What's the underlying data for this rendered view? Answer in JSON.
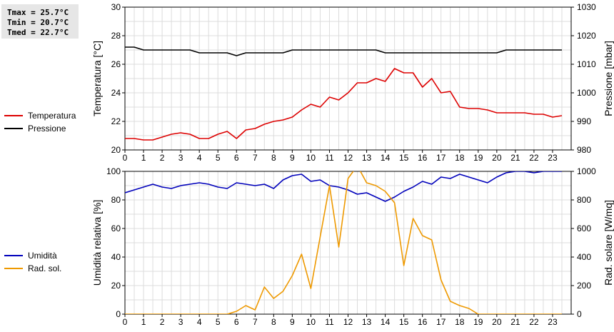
{
  "stats": {
    "tmax": "Tmax = 25.7°C",
    "tmin": "Tmin = 20.7°C",
    "tmed": "Tmed = 22.7°C"
  },
  "chart_data": [
    {
      "type": "line",
      "title": "",
      "xlabel": "",
      "x_ticks": [
        "0",
        "1",
        "2",
        "3",
        "4",
        "5",
        "6",
        "7",
        "8",
        "9",
        "10",
        "11",
        "12",
        "13",
        "14",
        "15",
        "16",
        "17",
        "18",
        "19",
        "20",
        "21",
        "22",
        "23"
      ],
      "xlim": [
        0,
        24
      ],
      "y_left": {
        "label": "Temperatura [°C]",
        "ylim": [
          20,
          30
        ],
        "ticks": [
          "20",
          "22",
          "24",
          "26",
          "28",
          "30"
        ]
      },
      "y_right": {
        "label": "Pressione [mbar]",
        "ylim": [
          980,
          1030
        ],
        "ticks": [
          "980",
          "990",
          "1000",
          "1010",
          "1020",
          "1030"
        ]
      },
      "grid": true,
      "legend": [
        {
          "name": "Temperatura",
          "color": "#dd0000"
        },
        {
          "name": "Pressione",
          "color": "#000000"
        }
      ],
      "series": [
        {
          "name": "Temperatura",
          "axis": "left",
          "color": "#dd0000",
          "x": [
            0,
            0.5,
            1,
            1.5,
            2,
            2.5,
            3,
            3.5,
            4,
            4.5,
            5,
            5.5,
            6,
            6.5,
            7,
            7.5,
            8,
            8.5,
            9,
            9.5,
            10,
            10.5,
            11,
            11.5,
            12,
            12.5,
            13,
            13.5,
            14,
            14.5,
            15,
            15.5,
            16,
            16.5,
            17,
            17.5,
            18,
            18.5,
            19,
            19.5,
            20,
            20.5,
            21,
            21.5,
            22,
            22.5,
            23,
            23.5
          ],
          "y": [
            20.8,
            20.8,
            20.7,
            20.7,
            20.9,
            21.1,
            21.2,
            21.1,
            20.8,
            20.8,
            21.1,
            21.3,
            20.8,
            21.4,
            21.5,
            21.8,
            22.0,
            22.1,
            22.3,
            22.8,
            23.2,
            23.0,
            23.7,
            23.5,
            24.0,
            24.7,
            24.7,
            25.0,
            24.8,
            25.7,
            25.4,
            25.4,
            24.4,
            25.0,
            24.0,
            24.1,
            23.0,
            22.9,
            22.9,
            22.8,
            22.6,
            22.6,
            22.6,
            22.6,
            22.5,
            22.5,
            22.3,
            22.4
          ]
        },
        {
          "name": "Pressione",
          "axis": "right",
          "color": "#000000",
          "x": [
            0,
            0.5,
            1,
            1.5,
            2,
            2.5,
            3,
            3.5,
            4,
            4.5,
            5,
            5.5,
            6,
            6.5,
            7,
            7.5,
            8,
            8.5,
            9,
            9.5,
            10,
            10.5,
            11,
            11.5,
            12,
            12.5,
            13,
            13.5,
            14,
            14.5,
            15,
            15.5,
            16,
            16.5,
            17,
            17.5,
            18,
            18.5,
            19,
            19.5,
            20,
            20.5,
            21,
            21.5,
            22,
            22.5,
            23,
            23.5
          ],
          "y": [
            1016,
            1016,
            1015,
            1015,
            1015,
            1015,
            1015,
            1015,
            1014,
            1014,
            1014,
            1014,
            1013,
            1014,
            1014,
            1014,
            1014,
            1014,
            1015,
            1015,
            1015,
            1015,
            1015,
            1015,
            1015,
            1015,
            1015,
            1015,
            1014,
            1014,
            1014,
            1014,
            1014,
            1014,
            1014,
            1014,
            1014,
            1014,
            1014,
            1014,
            1014,
            1015,
            1015,
            1015,
            1015,
            1015,
            1015,
            1015
          ]
        }
      ]
    },
    {
      "type": "line",
      "title": "",
      "xlabel": "",
      "x_ticks": [
        "0",
        "1",
        "2",
        "3",
        "4",
        "5",
        "6",
        "7",
        "8",
        "9",
        "10",
        "11",
        "12",
        "13",
        "14",
        "15",
        "16",
        "17",
        "18",
        "19",
        "20",
        "21",
        "22",
        "23"
      ],
      "xlim": [
        0,
        24
      ],
      "y_left": {
        "label": "Umidità relativa [%]",
        "ylim": [
          0,
          100
        ],
        "ticks": [
          "0",
          "20",
          "40",
          "60",
          "80",
          "100"
        ]
      },
      "y_right": {
        "label": "Rad. solare [W/mq]",
        "ylim": [
          0,
          1000
        ],
        "ticks": [
          "0",
          "200",
          "400",
          "600",
          "800",
          "1000"
        ]
      },
      "grid": true,
      "legend": [
        {
          "name": "Umidità",
          "color": "#0000bb"
        },
        {
          "name": "Rad. sol.",
          "color": "#ee9900"
        }
      ],
      "series": [
        {
          "name": "Umidità",
          "axis": "left",
          "color": "#0000bb",
          "x": [
            0,
            0.5,
            1,
            1.5,
            2,
            2.5,
            3,
            3.5,
            4,
            4.5,
            5,
            5.5,
            6,
            6.5,
            7,
            7.5,
            8,
            8.5,
            9,
            9.5,
            10,
            10.5,
            11,
            11.5,
            12,
            12.5,
            13,
            13.5,
            14,
            14.5,
            15,
            15.5,
            16,
            16.5,
            17,
            17.5,
            18,
            18.5,
            19,
            19.5,
            20,
            20.5,
            21,
            21.5,
            22,
            22.5,
            23,
            23.5
          ],
          "y": [
            85,
            87,
            89,
            91,
            89,
            88,
            90,
            91,
            92,
            91,
            89,
            88,
            92,
            91,
            90,
            91,
            88,
            94,
            97,
            98,
            93,
            94,
            90,
            89,
            87,
            84,
            85,
            82,
            79,
            82,
            86,
            89,
            93,
            91,
            96,
            95,
            98,
            96,
            94,
            92,
            96,
            99,
            100,
            100,
            99,
            100,
            100,
            100
          ]
        },
        {
          "name": "Rad. sol.",
          "axis": "right",
          "color": "#ee9900",
          "x": [
            0,
            0.5,
            1,
            1.5,
            2,
            2.5,
            3,
            3.5,
            4,
            4.5,
            5,
            5.5,
            6,
            6.5,
            7,
            7.5,
            8,
            8.5,
            9,
            9.5,
            10,
            10.5,
            11,
            11.5,
            12,
            12.5,
            13,
            13.5,
            14,
            14.5,
            15,
            15.5,
            16,
            16.5,
            17,
            17.5,
            18,
            18.5,
            19,
            19.5,
            20,
            20.5,
            21,
            21.5,
            22,
            22.5,
            23,
            23.5
          ],
          "y": [
            0,
            0,
            0,
            0,
            0,
            0,
            0,
            0,
            0,
            0,
            0,
            0,
            20,
            60,
            30,
            190,
            110,
            160,
            270,
            420,
            180,
            540,
            900,
            470,
            950,
            1040,
            920,
            900,
            860,
            780,
            340,
            670,
            550,
            520,
            240,
            90,
            60,
            40,
            0,
            0,
            0,
            0,
            0,
            0,
            0,
            0,
            0,
            0
          ]
        }
      ]
    }
  ]
}
